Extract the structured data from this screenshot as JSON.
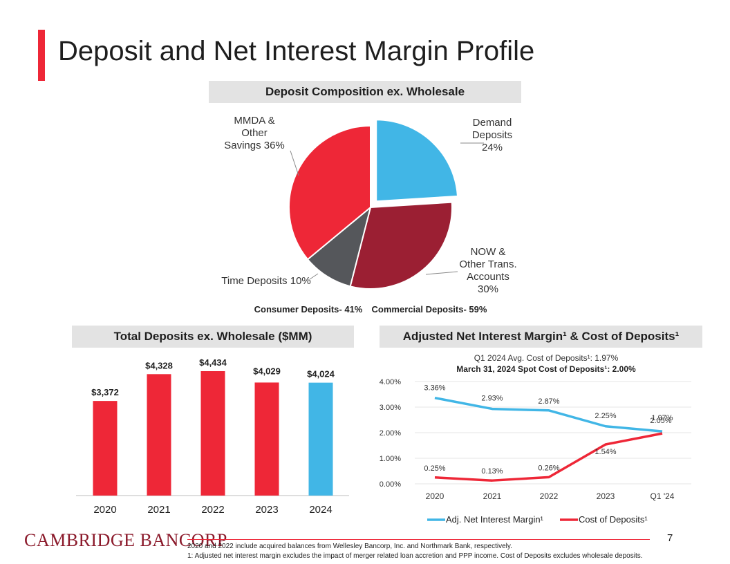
{
  "slide": {
    "title": "Deposit and Net Interest Margin Profile",
    "page_number": "7",
    "logo_text": "CAMBRIDGE BANCORP",
    "footnotes": [
      "2020 and 2022 include acquired balances from Wellesley Bancorp, Inc. and Northmark Bank, respectively.",
      "1: Adjusted net interest margin excludes the impact of merger related loan accretion and PPP income. Cost of Deposits excludes wholesale deposits."
    ],
    "colors": {
      "red": "#ee2737",
      "dark_red": "#9b1f33",
      "gray": "#55575b",
      "blue": "#41b6e6"
    }
  },
  "chart_data": [
    {
      "type": "pie",
      "title": "Deposit Composition ex. Wholesale",
      "slices": [
        {
          "name": "Demand Deposits",
          "value": 24,
          "label_lines": [
            "Demand",
            "Deposits",
            "24%"
          ],
          "color": "#41b6e6",
          "exploded": true
        },
        {
          "name": "NOW & Other Trans. Accounts",
          "value": 30,
          "label_lines": [
            "NOW &",
            "Other Trans.",
            "Accounts",
            "30%"
          ],
          "color": "#9b1f33",
          "exploded": false
        },
        {
          "name": "Time Deposits",
          "value": 10,
          "label_lines": [
            "Time Deposits 10%"
          ],
          "color": "#55575b",
          "exploded": false
        },
        {
          "name": "MMDA & Other Savings",
          "value": 36,
          "label_lines": [
            "MMDA &",
            "Other",
            "Savings 36%"
          ],
          "color": "#ee2737",
          "exploded": false
        }
      ],
      "footer": [
        "Consumer Deposits- 41%",
        "Commercial Deposits- 59%"
      ]
    },
    {
      "type": "bar",
      "title": "Total Deposits ex. Wholesale ($MM)",
      "categories": [
        "2020",
        "2021",
        "2022",
        "2023",
        "2024"
      ],
      "values": [
        3372,
        4328,
        4434,
        4029,
        4024
      ],
      "value_labels": [
        "$3,372",
        "$4,328",
        "$4,434",
        "$4,029",
        "$4,024"
      ],
      "colors": [
        "#ee2737",
        "#ee2737",
        "#ee2737",
        "#ee2737",
        "#41b6e6"
      ],
      "ylim": [
        0,
        4800
      ]
    },
    {
      "type": "line",
      "title": "Adjusted Net Interest Margin¹ & Cost of Deposits¹",
      "subtitle": "Q1 2024 Avg. Cost of Deposits¹: 1.97%",
      "subtitle2": "March 31, 2024 Spot Cost of Deposits¹: 2.00%",
      "x": [
        "2020",
        "2021",
        "2022",
        "2023",
        "Q1 '24"
      ],
      "yticks": [
        "4.00%",
        "3.00%",
        "2.00%",
        "1.00%",
        "0.00%"
      ],
      "ylim": [
        0,
        4
      ],
      "series": [
        {
          "name": "Adj. Net Interest Margin¹",
          "color": "#41b6e6",
          "values": [
            3.36,
            2.93,
            2.87,
            2.25,
            2.05
          ],
          "labels": [
            "3.36%",
            "2.93%",
            "2.87%",
            "2.25%",
            "2.05%"
          ]
        },
        {
          "name": "Cost of Deposits¹",
          "color": "#ee2737",
          "values": [
            0.25,
            0.13,
            0.26,
            1.54,
            1.97
          ],
          "labels": [
            "0.25%",
            "0.13%",
            "0.26%",
            "1.54%",
            "1.97%"
          ]
        }
      ]
    }
  ]
}
